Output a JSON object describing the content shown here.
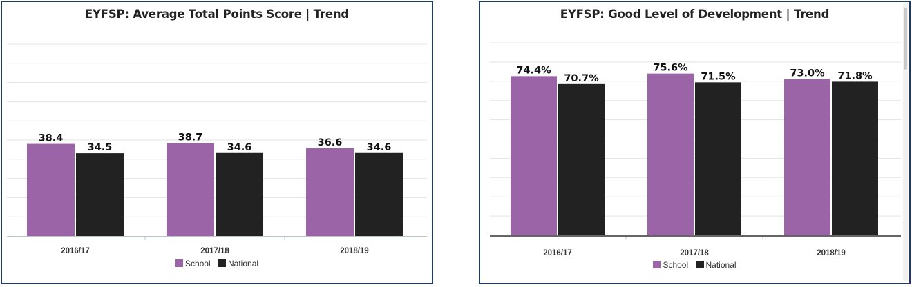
{
  "chart_data": [
    {
      "type": "bar",
      "title": "EYFSP: Average Total Points Score | Trend",
      "categories": [
        "2016/17",
        "2017/18",
        "2018/19"
      ],
      "series": [
        {
          "name": "School",
          "values": [
            38.4,
            38.7,
            36.6
          ],
          "labels": [
            "38.4",
            "38.7",
            "36.6"
          ],
          "color": "#9b64a6"
        },
        {
          "name": "National",
          "values": [
            34.5,
            34.6,
            34.6
          ],
          "labels": [
            "34.5",
            "34.6",
            "34.6"
          ],
          "color": "#222222"
        }
      ],
      "ylim": [
        0,
        80
      ],
      "y_gridlines": 10,
      "grid": true,
      "legend_position": "bottom"
    },
    {
      "type": "bar",
      "title": "EYFSP: Good Level of Development | Trend",
      "categories": [
        "2016/17",
        "2017/18",
        "2018/19"
      ],
      "series": [
        {
          "name": "School",
          "values": [
            74.4,
            75.6,
            73.0
          ],
          "labels": [
            "74.4%",
            "75.6%",
            "73.0%"
          ],
          "color": "#9b64a6"
        },
        {
          "name": "National",
          "values": [
            70.7,
            71.5,
            71.8
          ],
          "labels": [
            "70.7%",
            "71.5%",
            "71.8%"
          ],
          "color": "#222222"
        }
      ],
      "ylim": [
        0,
        90
      ],
      "y_gridlines": 10,
      "grid": true,
      "legend_position": "bottom"
    }
  ]
}
